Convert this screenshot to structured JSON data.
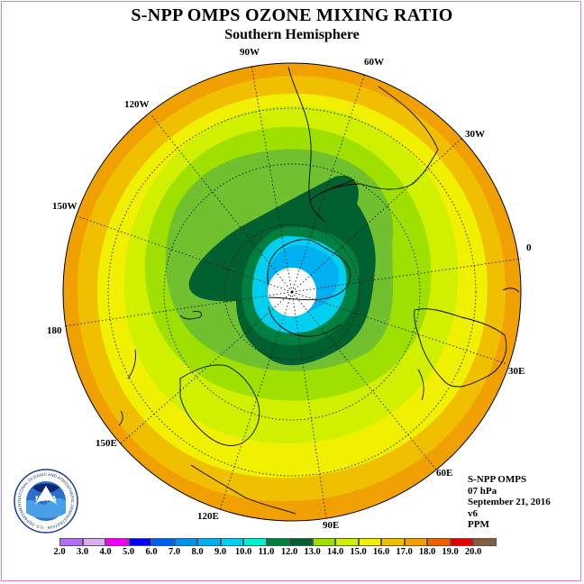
{
  "title": "S-NPP OMPS OZONE MIXING RATIO",
  "subtitle": "Southern Hemisphere",
  "longitude_labels": [
    "90W",
    "60W",
    "30W",
    "0",
    "30E",
    "60E",
    "90E",
    "120E",
    "150E",
    "180",
    "150W",
    "120W"
  ],
  "info": {
    "instrument": "S-NPP OMPS",
    "level": "07 hPa",
    "date": "September 21, 2016",
    "version": "v6",
    "units": "PPM"
  },
  "logo": {
    "text": "NOAA",
    "ring_text": "NATIONAL OCEANIC AND ATMOSPHERIC ADMINISTRATION · U.S. DEPARTMENT OF COMMERCE"
  },
  "colorbar": {
    "ticks": [
      "2.0",
      "3.0",
      "4.0",
      "5.0",
      "6.0",
      "7.0",
      "8.0",
      "9.0",
      "10.0",
      "11.0",
      "12.0",
      "13.0",
      "14.0",
      "15.0",
      "16.0",
      "17.0",
      "18.0",
      "19.0",
      "20.0"
    ],
    "colors": [
      "#b070f0",
      "#d8b0f0",
      "#f000f0",
      "#0000f0",
      "#0060f0",
      "#0090f0",
      "#00b0f0",
      "#00d0f0",
      "#00f0d0",
      "#008040",
      "#006030",
      "#a0e000",
      "#d0f000",
      "#f0f000",
      "#f0c000",
      "#f0a000",
      "#f06000",
      "#e00000",
      "#806040"
    ]
  },
  "colors": {
    "outer_orange": "#f0a000",
    "gold": "#f0c000",
    "yellow": "#f0f000",
    "yellow_green": "#d0f000",
    "light_green": "#a0e000",
    "green": "#70c030",
    "dark_green": "#006030",
    "mid_green": "#008040",
    "cyan": "#00d0f0",
    "light_blue": "#00b0f0",
    "center": "#ffffff"
  }
}
